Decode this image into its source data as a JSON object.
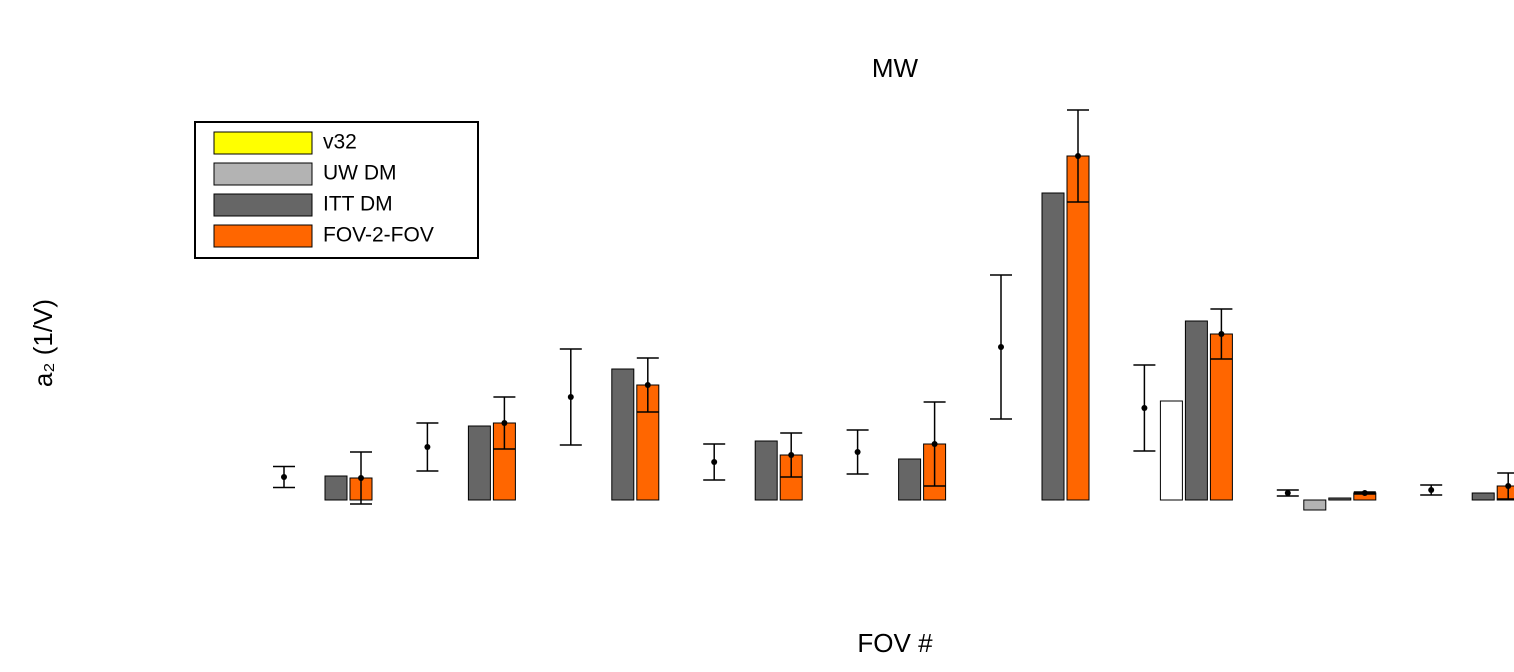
{
  "chart_data": {
    "type": "bar",
    "title": "MW",
    "xlabel": "FOV #",
    "ylabel": "a₂ (1/V)",
    "categories": [
      null,
      null,
      null,
      null,
      null,
      null,
      null,
      null,
      null
    ],
    "ylim": [
      -0.8,
      4.4
    ],
    "legend": "top-left",
    "series": [
      {
        "name": "v32",
        "color": "#ffff00",
        "marker": "point",
        "values": [
          0.23,
          0.53,
          1.03,
          0.38,
          0.48,
          1.53,
          0.92,
          0.07,
          0.1
        ],
        "errors": [
          0.105,
          0.24,
          0.48,
          0.18,
          0.22,
          0.72,
          0.43,
          0.03,
          0.05
        ]
      },
      {
        "name": "UW DM",
        "color": "#b3b3b3",
        "values": [
          null,
          null,
          null,
          null,
          null,
          null,
          0.99,
          -0.1,
          null
        ],
        "bar_colors": [
          null,
          null,
          null,
          null,
          null,
          null,
          "#ffffff",
          "#b3b3b3",
          null
        ]
      },
      {
        "name": "ITT DM",
        "color": "#666666",
        "values": [
          0.24,
          0.74,
          1.31,
          0.59,
          0.41,
          3.07,
          1.79,
          0.02,
          0.07
        ]
      },
      {
        "name": "FOV-2-FOV",
        "color": "#ff6600",
        "values": [
          0.22,
          0.77,
          1.15,
          0.45,
          0.56,
          3.44,
          1.66,
          0.07,
          0.14
        ],
        "errors": [
          0.26,
          0.26,
          0.27,
          0.22,
          0.42,
          0.46,
          0.25,
          0.01,
          0.13
        ]
      }
    ]
  }
}
